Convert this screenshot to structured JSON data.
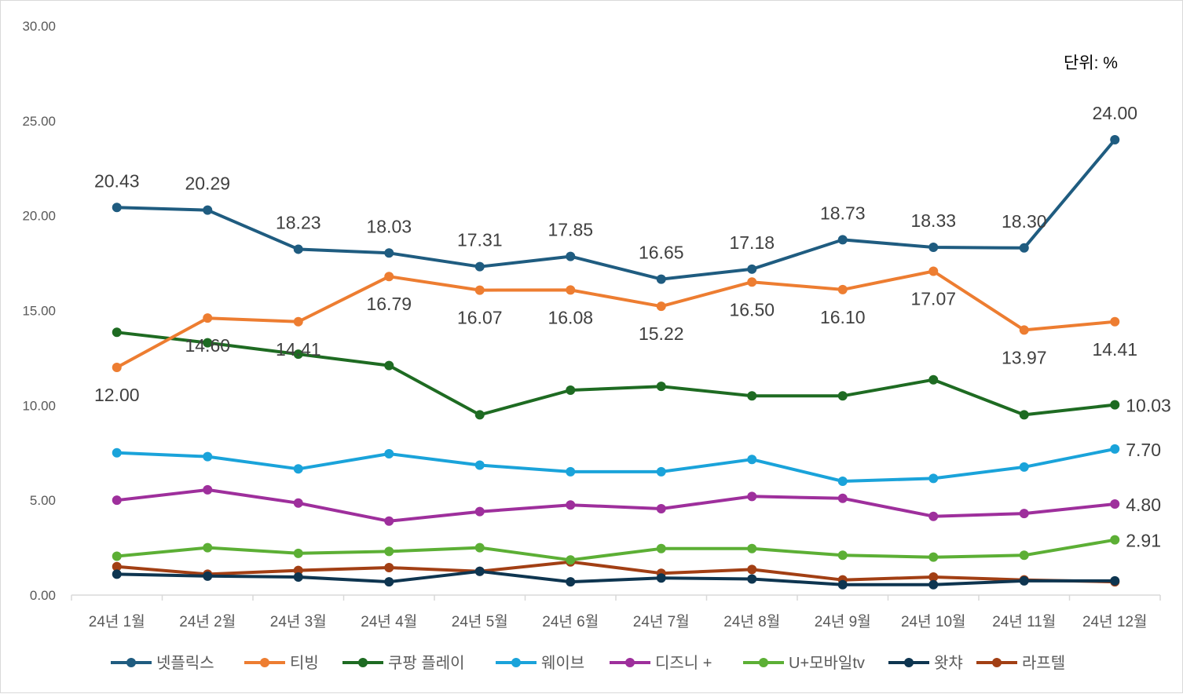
{
  "chart_data": {
    "type": "line",
    "title": "",
    "xlabel": "",
    "ylabel": "",
    "unit_note": "단위: %",
    "ylim": [
      0,
      30
    ],
    "yticks": [
      "0.00",
      "5.00",
      "10.00",
      "15.00",
      "20.00",
      "25.00",
      "30.00"
    ],
    "grid": false,
    "legend_position": "bottom",
    "categories": [
      "24년 1월",
      "24년 2월",
      "24년 3월",
      "24년 4월",
      "24년 5월",
      "24년 6월",
      "24년 7월",
      "24년 8월",
      "24년 9월",
      "24년 10월",
      "24년 11월",
      "24년 12월"
    ],
    "series": [
      {
        "name": "넷플릭스",
        "color": "#1F5C80",
        "values": [
          20.43,
          20.29,
          18.23,
          18.03,
          17.31,
          17.85,
          16.65,
          17.18,
          18.73,
          18.33,
          18.3,
          24.0
        ],
        "labels": [
          "20.43",
          "20.29",
          "18.23",
          "18.03",
          "17.31",
          "17.85",
          "16.65",
          "17.18",
          "18.73",
          "18.33",
          "18.30",
          "24.00"
        ]
      },
      {
        "name": "티빙",
        "color": "#ED7D31",
        "values": [
          12.0,
          14.6,
          14.41,
          16.79,
          16.07,
          16.08,
          15.22,
          16.5,
          16.1,
          17.07,
          13.97,
          14.41
        ],
        "labels": [
          "12.00",
          "14.60",
          "14.41",
          "16.79",
          "16.07",
          "16.08",
          "15.22",
          "16.50",
          "16.10",
          "17.07",
          "13.97",
          "14.41"
        ]
      },
      {
        "name": "쿠팡 플레이",
        "color": "#1E6B22",
        "values": [
          13.85,
          13.3,
          12.7,
          12.1,
          9.5,
          10.8,
          11.0,
          10.5,
          10.5,
          11.35,
          9.5,
          10.03
        ],
        "labels": [
          "",
          "",
          "",
          "",
          "",
          "",
          "",
          "",
          "",
          "",
          "",
          "10.03"
        ]
      },
      {
        "name": "웨이브",
        "color": "#1AA3DA",
        "values": [
          7.5,
          7.3,
          6.65,
          7.45,
          6.85,
          6.5,
          6.5,
          7.15,
          6.0,
          6.15,
          6.75,
          7.7
        ],
        "labels": [
          "",
          "",
          "",
          "",
          "",
          "",
          "",
          "",
          "",
          "",
          "",
          "7.70"
        ]
      },
      {
        "name": "디즈니 +",
        "color": "#9E2F9C",
        "values": [
          5.0,
          5.55,
          4.85,
          3.9,
          4.4,
          4.75,
          4.55,
          5.2,
          5.1,
          4.15,
          4.3,
          4.8
        ],
        "labels": [
          "",
          "",
          "",
          "",
          "",
          "",
          "",
          "",
          "",
          "",
          "",
          "4.80"
        ]
      },
      {
        "name": "U+모바일tv",
        "color": "#5CAF35",
        "values": [
          2.05,
          2.5,
          2.2,
          2.3,
          2.5,
          1.85,
          2.45,
          2.45,
          2.1,
          2.0,
          2.1,
          2.91
        ],
        "labels": [
          "",
          "",
          "",
          "",
          "",
          "",
          "",
          "",
          "",
          "",
          "",
          "2.91"
        ]
      },
      {
        "name": "왓챠",
        "color": "#0E3550",
        "values": [
          1.1,
          1.0,
          0.95,
          0.7,
          1.25,
          0.7,
          0.9,
          0.85,
          0.55,
          0.55,
          0.75,
          0.75
        ],
        "labels": [
          "",
          "",
          "",
          "",
          "",
          "",
          "",
          "",
          "",
          "",
          "",
          ""
        ]
      },
      {
        "name": "라프텔",
        "color": "#A23F14",
        "values": [
          1.5,
          1.1,
          1.3,
          1.45,
          1.25,
          1.75,
          1.15,
          1.35,
          0.8,
          0.95,
          0.8,
          0.7
        ],
        "labels": [
          "",
          "",
          "",
          "",
          "",
          "",
          "",
          "",
          "",
          "",
          "",
          ""
        ]
      }
    ]
  }
}
